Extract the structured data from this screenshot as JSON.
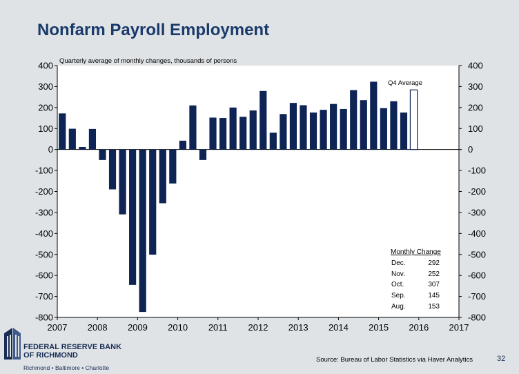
{
  "slide": {
    "title": "Nonfarm Payroll Employment",
    "source": "Source: Bureau of Labor Statistics via Haver Analytics",
    "page_number": "32",
    "bank_name_line1": "FEDERAL RESERVE BANK",
    "bank_name_line2": "OF RICHMOND",
    "bank_cities": "Richmond • Baltimore • Charlotte"
  },
  "colors": {
    "title": "#1a3a6b",
    "bar_fill": "#0d2454",
    "q4_outline": "#0d2454",
    "background": "#dfe3e6"
  },
  "chart_data": {
    "type": "bar",
    "subtitle": "Quarterly average of monthly changes, thousands of persons",
    "ylim": [
      -800,
      400
    ],
    "yticks": [
      400,
      300,
      200,
      100,
      0,
      -100,
      -200,
      -300,
      -400,
      -500,
      -600,
      -700,
      -800
    ],
    "xlim": [
      2007,
      2017
    ],
    "xticks": [
      "2007",
      "2008",
      "2009",
      "2010",
      "2011",
      "2012",
      "2013",
      "2014",
      "2015",
      "2016",
      "2017"
    ],
    "series": [
      {
        "values": [
          172,
          99,
          12,
          98,
          -50,
          -190,
          -309,
          -645,
          -774,
          -501,
          -256,
          -162,
          42,
          210,
          -50,
          152,
          150,
          200,
          156,
          186,
          279,
          80,
          169,
          222,
          211,
          176,
          189,
          217,
          193,
          283,
          235,
          323,
          197,
          230,
          176
        ]
      }
    ],
    "series_start": "2007 Q1",
    "q4_average": {
      "label": "Q4 Average",
      "value": 284
    },
    "monthly_change_table": {
      "header": "Monthly Change",
      "rows": [
        {
          "month": "Dec.",
          "value": "292"
        },
        {
          "month": "Nov.",
          "value": "252"
        },
        {
          "month": "Oct.",
          "value": "307"
        },
        {
          "month": "Sep.",
          "value": "145"
        },
        {
          "month": "Aug.",
          "value": "153"
        }
      ]
    }
  }
}
